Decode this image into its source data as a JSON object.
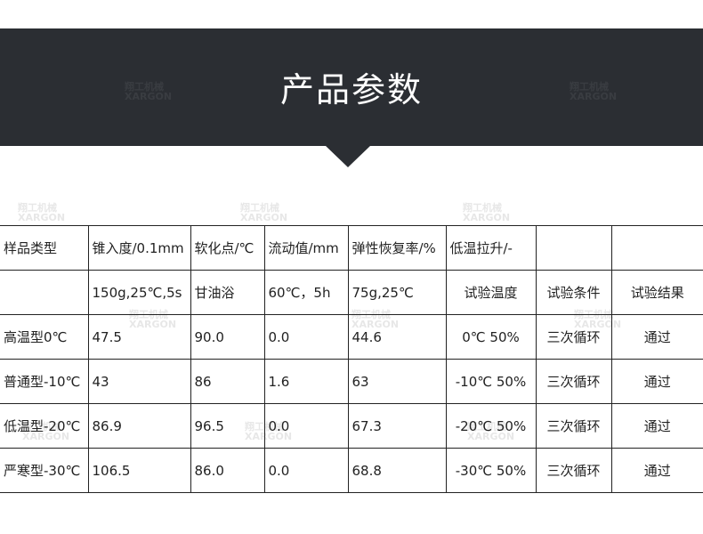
{
  "header": {
    "title": "产品参数"
  },
  "watermark": {
    "cn": "翔工机械",
    "en": "XARGON"
  },
  "table": {
    "header_row": [
      "样品类型",
      "锥入度/0.1mm",
      "软化点/℃",
      "流动值/mm",
      "弹性恢复率/%",
      "低温拉升/-",
      "",
      ""
    ],
    "condition_row": [
      "",
      "150g,25℃,5s",
      "甘油浴",
      "60℃，5h",
      "75g,25℃",
      "试验温度",
      "试验条件",
      "试验结果"
    ],
    "rows": [
      [
        "高温型0℃",
        "47.5",
        "90.0",
        "0.0",
        "44.6",
        "0℃ 50%",
        "三次循环",
        "通过"
      ],
      [
        "普通型-10℃",
        "43",
        "86",
        "1.6",
        "63",
        "-10℃ 50%",
        "三次循环",
        "通过"
      ],
      [
        "低温型-20℃",
        "86.9",
        "96.5",
        "0.0",
        "67.3",
        "-20℃ 50%",
        "三次循环",
        "通过"
      ],
      [
        "严寒型-30℃",
        "106.5",
        "86.0",
        "0.0",
        "68.8",
        "-30℃ 50%",
        "三次循环",
        "通过"
      ]
    ]
  },
  "colors": {
    "banner": "#2b2e33",
    "title": "#ffffff",
    "border": "#222222"
  }
}
